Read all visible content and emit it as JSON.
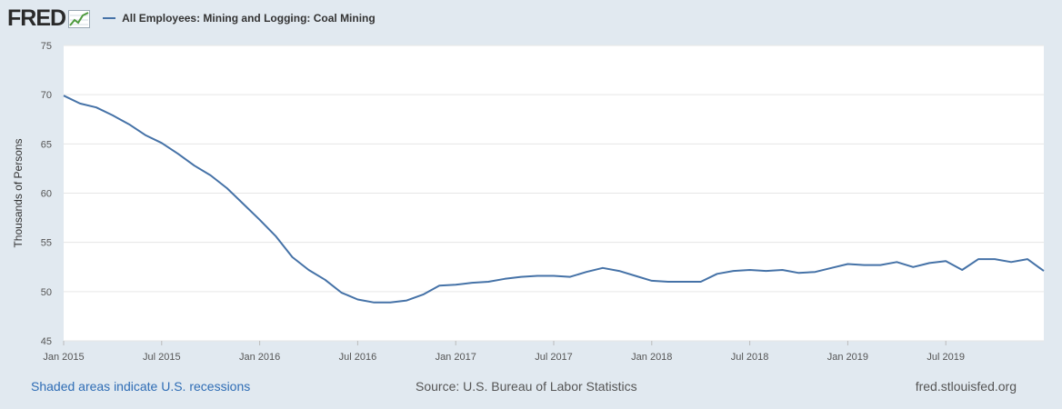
{
  "header": {
    "logo_text": "FRED",
    "logo_icon": "trend-graph-icon"
  },
  "footer": {
    "recession_note": "Shaded areas indicate U.S. recessions",
    "source": "Source: U.S. Bureau of Labor Statistics",
    "site": "fred.stlouisfed.org"
  },
  "chart_data": {
    "type": "line",
    "title": "",
    "xlabel": "",
    "ylabel": "Thousands of Persons",
    "ylim": [
      45,
      75
    ],
    "y_ticks": [
      45,
      50,
      55,
      60,
      65,
      70,
      75
    ],
    "x_ticks": [
      {
        "label": "Jan 2015",
        "date": "2015-01"
      },
      {
        "label": "Jul 2015",
        "date": "2015-07"
      },
      {
        "label": "Jan 2016",
        "date": "2016-01"
      },
      {
        "label": "Jul 2016",
        "date": "2016-07"
      },
      {
        "label": "Jan 2017",
        "date": "2017-01"
      },
      {
        "label": "Jul 2017",
        "date": "2017-07"
      },
      {
        "label": "Jan 2018",
        "date": "2018-01"
      },
      {
        "label": "Jul 2018",
        "date": "2018-07"
      },
      {
        "label": "Jan 2019",
        "date": "2019-01"
      },
      {
        "label": "Jul 2019",
        "date": "2019-07"
      }
    ],
    "grid": true,
    "legend": "top-left",
    "series": [
      {
        "name": "All Employees: Mining and Logging: Coal Mining",
        "color": "#4572a7",
        "x": [
          "2015-01",
          "2015-02",
          "2015-03",
          "2015-04",
          "2015-05",
          "2015-06",
          "2015-07",
          "2015-08",
          "2015-09",
          "2015-10",
          "2015-11",
          "2015-12",
          "2016-01",
          "2016-02",
          "2016-03",
          "2016-04",
          "2016-05",
          "2016-06",
          "2016-07",
          "2016-08",
          "2016-09",
          "2016-10",
          "2016-11",
          "2016-12",
          "2017-01",
          "2017-02",
          "2017-03",
          "2017-04",
          "2017-05",
          "2017-06",
          "2017-07",
          "2017-08",
          "2017-09",
          "2017-10",
          "2017-11",
          "2017-12",
          "2018-01",
          "2018-02",
          "2018-03",
          "2018-04",
          "2018-05",
          "2018-06",
          "2018-07",
          "2018-08",
          "2018-09",
          "2018-10",
          "2018-11",
          "2018-12",
          "2019-01",
          "2019-02",
          "2019-03",
          "2019-04",
          "2019-05",
          "2019-06",
          "2019-07",
          "2019-08",
          "2019-09",
          "2019-10",
          "2019-11",
          "2019-12"
        ],
        "values": [
          69.9,
          69.1,
          68.7,
          67.9,
          67.0,
          65.9,
          65.1,
          64.0,
          62.8,
          61.8,
          60.5,
          58.9,
          57.3,
          55.6,
          53.5,
          52.2,
          51.2,
          49.9,
          49.2,
          48.9,
          48.9,
          49.1,
          49.7,
          50.6,
          50.7,
          50.9,
          51.0,
          51.3,
          51.5,
          51.6,
          51.6,
          51.5,
          52.0,
          52.4,
          52.1,
          51.6,
          51.1,
          51.0,
          51.0,
          51.0,
          51.8,
          52.1,
          52.2,
          52.1,
          52.2,
          51.9,
          52.0,
          52.4,
          52.8,
          52.7,
          52.7,
          53.0,
          52.5,
          52.9,
          53.1,
          52.2,
          53.3,
          53.3,
          53.0,
          53.3
        ]
      }
    ],
    "last_point": {
      "date": "2020-01",
      "value": 52.1
    }
  }
}
